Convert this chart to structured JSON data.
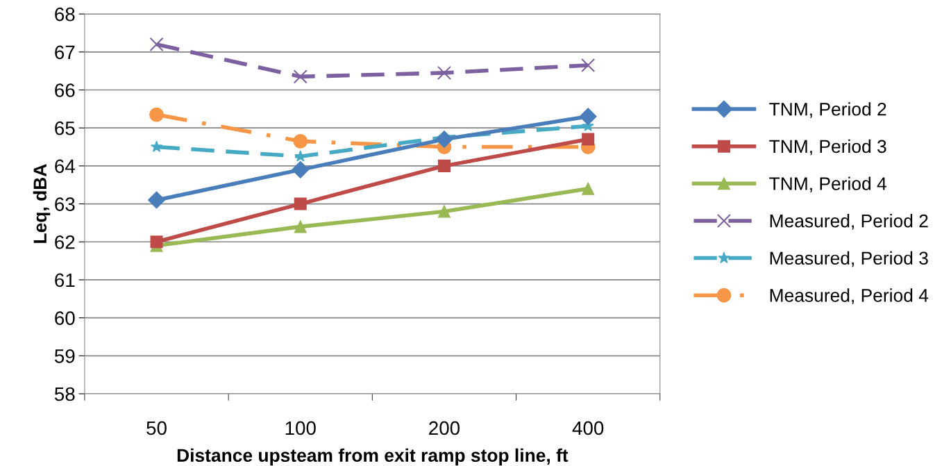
{
  "chart_data": {
    "type": "line",
    "xlabel": "Distance upsteam from exit ramp stop line, ft",
    "ylabel": "Leq, dBA",
    "categories": [
      "50",
      "100",
      "200",
      "400"
    ],
    "series": [
      {
        "name": "TNM, Period 2",
        "color": "#4a7ebb",
        "marker": "diamond",
        "line_style": "solid",
        "values": [
          63.1,
          63.9,
          64.7,
          65.3
        ]
      },
      {
        "name": "TNM, Period 3",
        "color": "#be4b48",
        "marker": "square",
        "line_style": "solid",
        "values": [
          62.0,
          63.0,
          64.0,
          64.7
        ]
      },
      {
        "name": "TNM, Period 4",
        "color": "#98b954",
        "marker": "triangle",
        "line_style": "solid",
        "values": [
          61.9,
          62.4,
          62.8,
          63.4
        ]
      },
      {
        "name": "Measured, Period 2",
        "color": "#7d60a0",
        "marker": "cross",
        "line_style": "dashed",
        "values": [
          67.2,
          66.35,
          66.45,
          66.65
        ]
      },
      {
        "name": "Measured, Period 3",
        "color": "#46aac5",
        "marker": "star",
        "line_style": "dashed",
        "values": [
          64.5,
          64.25,
          64.75,
          65.05
        ]
      },
      {
        "name": "Measured, Period 4",
        "color": "#f79646",
        "marker": "circle",
        "line_style": "dashdot",
        "values": [
          65.35,
          64.65,
          64.5,
          64.5
        ]
      }
    ],
    "ylim": [
      58,
      68
    ],
    "yticks": [
      58,
      59,
      60,
      61,
      62,
      63,
      64,
      65,
      66,
      67,
      68
    ],
    "grid": "y",
    "legend": "right"
  }
}
